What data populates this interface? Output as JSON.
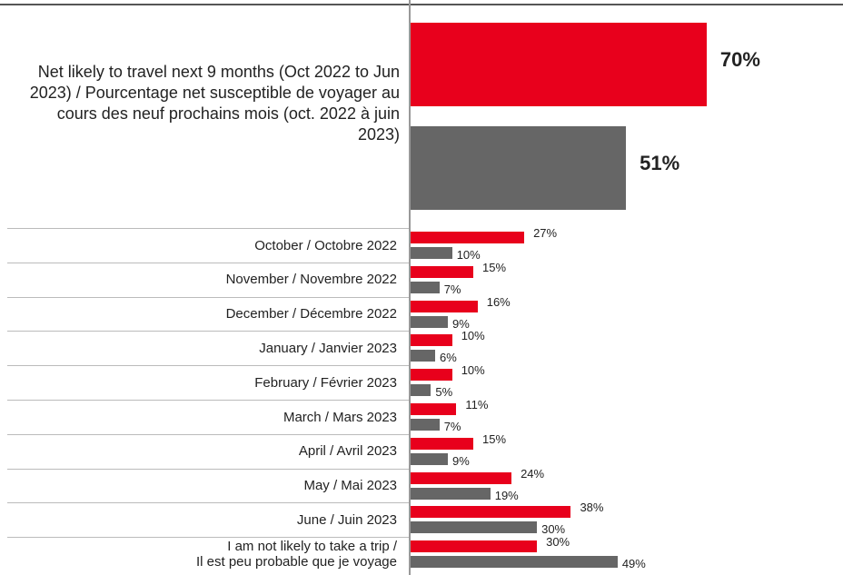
{
  "chart_data": {
    "type": "bar",
    "orientation": "horizontal",
    "categories": [
      "Net likely to travel next 9 months (Oct 2022 to Jun 2023) / Pourcentage net susceptible de voyager au cours des neuf prochains mois (oct. 2022 à juin 2023)",
      "October / Octobre 2022",
      "November / Novembre 2022",
      "December / Décembre 2022",
      "January / Janvier 2023",
      "February / Février  2023",
      "March / Mars  2023",
      "April / Avril  2023",
      "May / Mai  2023",
      "June / Juin 2023",
      "I am not likely to take a trip /\nIl est peu probable que je voyage"
    ],
    "series": [
      {
        "color": "#e8001c",
        "values": [
          70,
          27,
          15,
          16,
          10,
          10,
          11,
          15,
          24,
          38,
          30
        ],
        "value_labels": [
          "70%",
          "27%",
          "15%",
          "16%",
          "10%",
          "10%",
          "11%",
          "15%",
          "24%",
          "38%",
          "30%"
        ]
      },
      {
        "color": "#666666",
        "values": [
          51,
          10,
          7,
          9,
          6,
          5,
          7,
          9,
          19,
          30,
          49
        ],
        "value_labels": [
          "51%",
          "10%",
          "7%",
          "9%",
          "6%",
          "5%",
          "7%",
          "9%",
          "19%",
          "30%",
          "49%"
        ]
      }
    ]
  }
}
